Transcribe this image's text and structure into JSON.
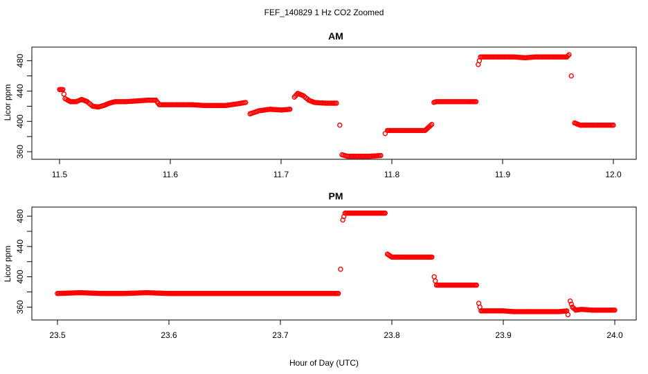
{
  "figure": {
    "title": "FEF_140829  1 Hz CO2 Zoomed",
    "xlabel": "Hour of Day (UTC)"
  },
  "chart_data": [
    {
      "type": "scatter",
      "title": "AM",
      "ylabel": "Licor ppm",
      "xlim": [
        11.5,
        12.0
      ],
      "ylim": [
        350,
        498
      ],
      "x_ticks": [
        "11.5",
        "11.6",
        "11.7",
        "11.8",
        "11.9",
        "12.0"
      ],
      "y_ticks": [
        "360",
        "400",
        "440",
        "480"
      ],
      "point_color": "#ff0000",
      "marker": "open-circle",
      "x": [
        11.5,
        11.503,
        11.505,
        11.51,
        11.515,
        11.52,
        11.525,
        11.53,
        11.535,
        11.54,
        11.545,
        11.55,
        11.56,
        11.57,
        11.58,
        11.587,
        11.59,
        11.6,
        11.61,
        11.62,
        11.63,
        11.64,
        11.65,
        11.66,
        11.668,
        11.672,
        11.68,
        11.69,
        11.7,
        11.708,
        11.712,
        11.715,
        11.72,
        11.725,
        11.73,
        11.74,
        11.75,
        11.753,
        11.755,
        11.76,
        11.77,
        11.78,
        11.79,
        11.794,
        11.796,
        11.8,
        11.81,
        11.82,
        11.83,
        11.836,
        11.838,
        11.84,
        11.85,
        11.86,
        11.87,
        11.876,
        11.878,
        11.88,
        11.89,
        11.9,
        11.91,
        11.92,
        11.93,
        11.94,
        11.95,
        11.958,
        11.96,
        11.962,
        11.965,
        11.97,
        11.98,
        11.99,
        12.0
      ],
      "y": [
        442,
        442,
        430,
        426,
        426,
        429,
        426,
        420,
        419,
        421,
        424,
        426,
        426,
        427,
        428,
        428,
        422,
        422,
        422,
        422,
        421,
        421,
        421,
        423,
        425,
        410,
        414,
        416,
        415,
        416,
        432,
        437,
        434,
        428,
        425,
        424,
        424,
        395,
        356,
        354,
        354,
        354,
        355,
        384,
        388,
        388,
        388,
        388,
        388,
        396,
        425,
        426,
        426,
        426,
        426,
        426,
        475,
        485,
        485,
        485,
        485,
        484,
        485,
        485,
        485,
        485,
        488,
        460,
        398,
        395,
        395,
        395,
        395
      ]
    },
    {
      "type": "scatter",
      "title": "PM",
      "ylabel": "Licor ppm",
      "xlim": [
        23.5,
        24.0
      ],
      "ylim": [
        343,
        492
      ],
      "x_ticks": [
        "23.5",
        "23.6",
        "23.7",
        "23.8",
        "23.9",
        "24.0"
      ],
      "y_ticks": [
        "360",
        "400",
        "440",
        "480"
      ],
      "point_color": "#ff0000",
      "marker": "open-circle",
      "x": [
        23.5,
        23.52,
        23.54,
        23.56,
        23.58,
        23.6,
        23.62,
        23.64,
        23.66,
        23.68,
        23.7,
        23.72,
        23.74,
        23.752,
        23.754,
        23.756,
        23.758,
        23.77,
        23.78,
        23.79,
        23.794,
        23.796,
        23.8,
        23.81,
        23.82,
        23.83,
        23.836,
        23.838,
        23.84,
        23.85,
        23.86,
        23.87,
        23.876,
        23.878,
        23.88,
        23.89,
        23.9,
        23.91,
        23.92,
        23.93,
        23.94,
        23.95,
        23.957,
        23.958,
        23.96,
        23.962,
        23.965,
        23.97,
        23.98,
        23.99,
        24.0
      ],
      "y": [
        378,
        379,
        378,
        378,
        379,
        378,
        378,
        378,
        378,
        378,
        378,
        378,
        378,
        378,
        410,
        475,
        484,
        484,
        484,
        484,
        484,
        430,
        426,
        426,
        426,
        426,
        426,
        400,
        389,
        389,
        389,
        389,
        389,
        365,
        355,
        355,
        355,
        354,
        354,
        354,
        354,
        354,
        355,
        350,
        368,
        360,
        356,
        357,
        356,
        356,
        356
      ]
    }
  ]
}
